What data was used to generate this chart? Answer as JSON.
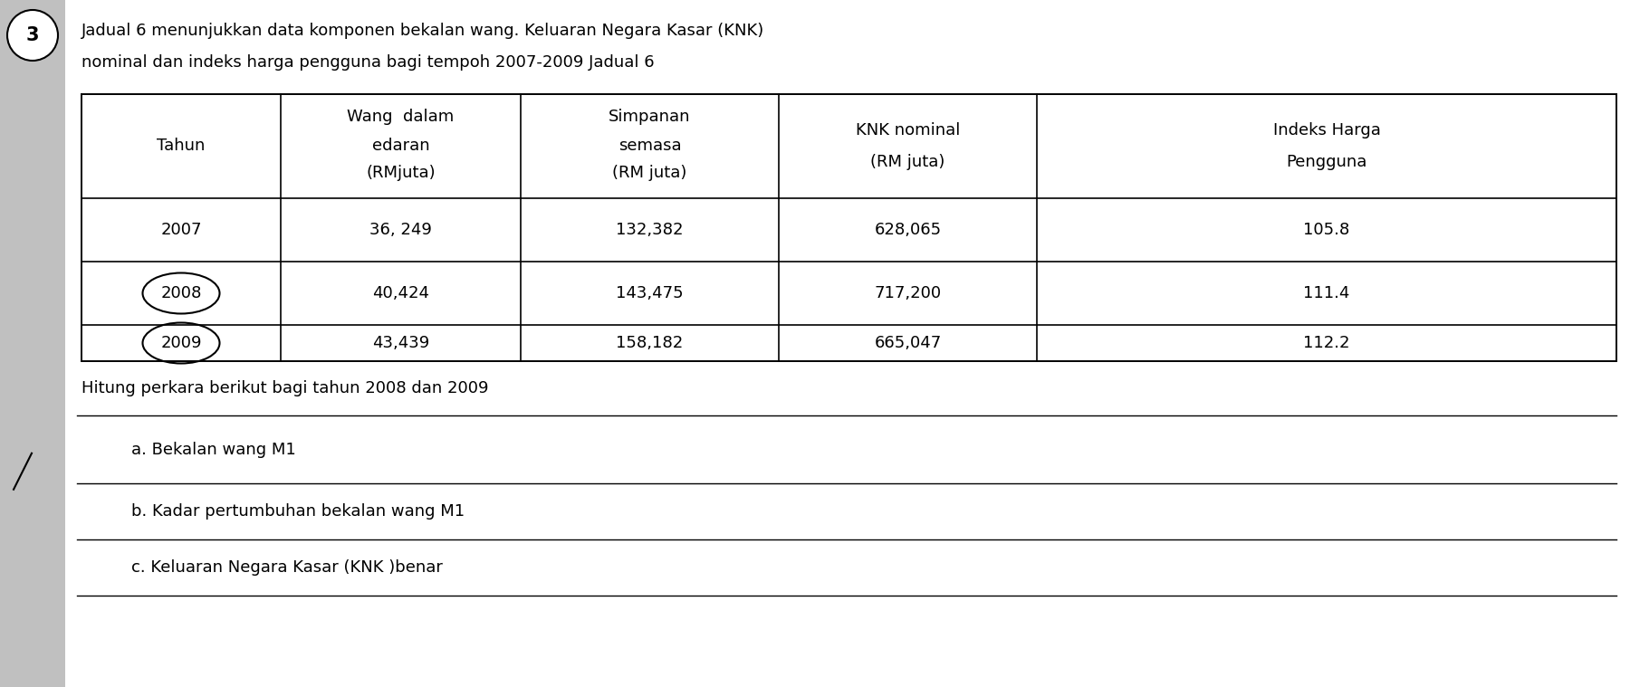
{
  "question_number": "3",
  "header_text_line1": "Jadual 6 menunjukkan data komponen bekalan wang. Keluaran Negara Kasar (KNK)",
  "header_text_line2": "nominal dan indeks harga pengguna bagi tempoh 2007-2009 Jadual 6",
  "col_headers": [
    [
      "Tahun",
      "",
      ""
    ],
    [
      "Wang  dalam",
      "edaran",
      "(RMjuta)"
    ],
    [
      "Simpanan",
      "semasa",
      "(RM juta)"
    ],
    [
      "KNK nominal",
      "(RM juta)",
      ""
    ],
    [
      "Indeks Harga",
      "Pengguna",
      ""
    ]
  ],
  "rows": [
    [
      "2007",
      "36, 249",
      "132,382",
      "628,065",
      "105.8"
    ],
    [
      "2008",
      "40,424",
      "143,475",
      "717,200",
      "111.4"
    ],
    [
      "2009",
      "43,439",
      "158,182",
      "665,047",
      "112.2"
    ]
  ],
  "circled_rows": [
    1,
    2
  ],
  "instruction_text": "Hitung perkara berikut bagi tahun 2008 dan 2009",
  "sub_questions": [
    "a. Bekalan wang M1",
    "b. Kadar pertumbuhan bekalan wang M1",
    "c. Keluaran Negara Kasar (KNK )benar"
  ],
  "background_color": "#d3d3d3",
  "table_bg": "#ffffff",
  "text_color": "#000000",
  "font_size_header": 13,
  "font_size_table": 13,
  "font_size_sub": 13
}
